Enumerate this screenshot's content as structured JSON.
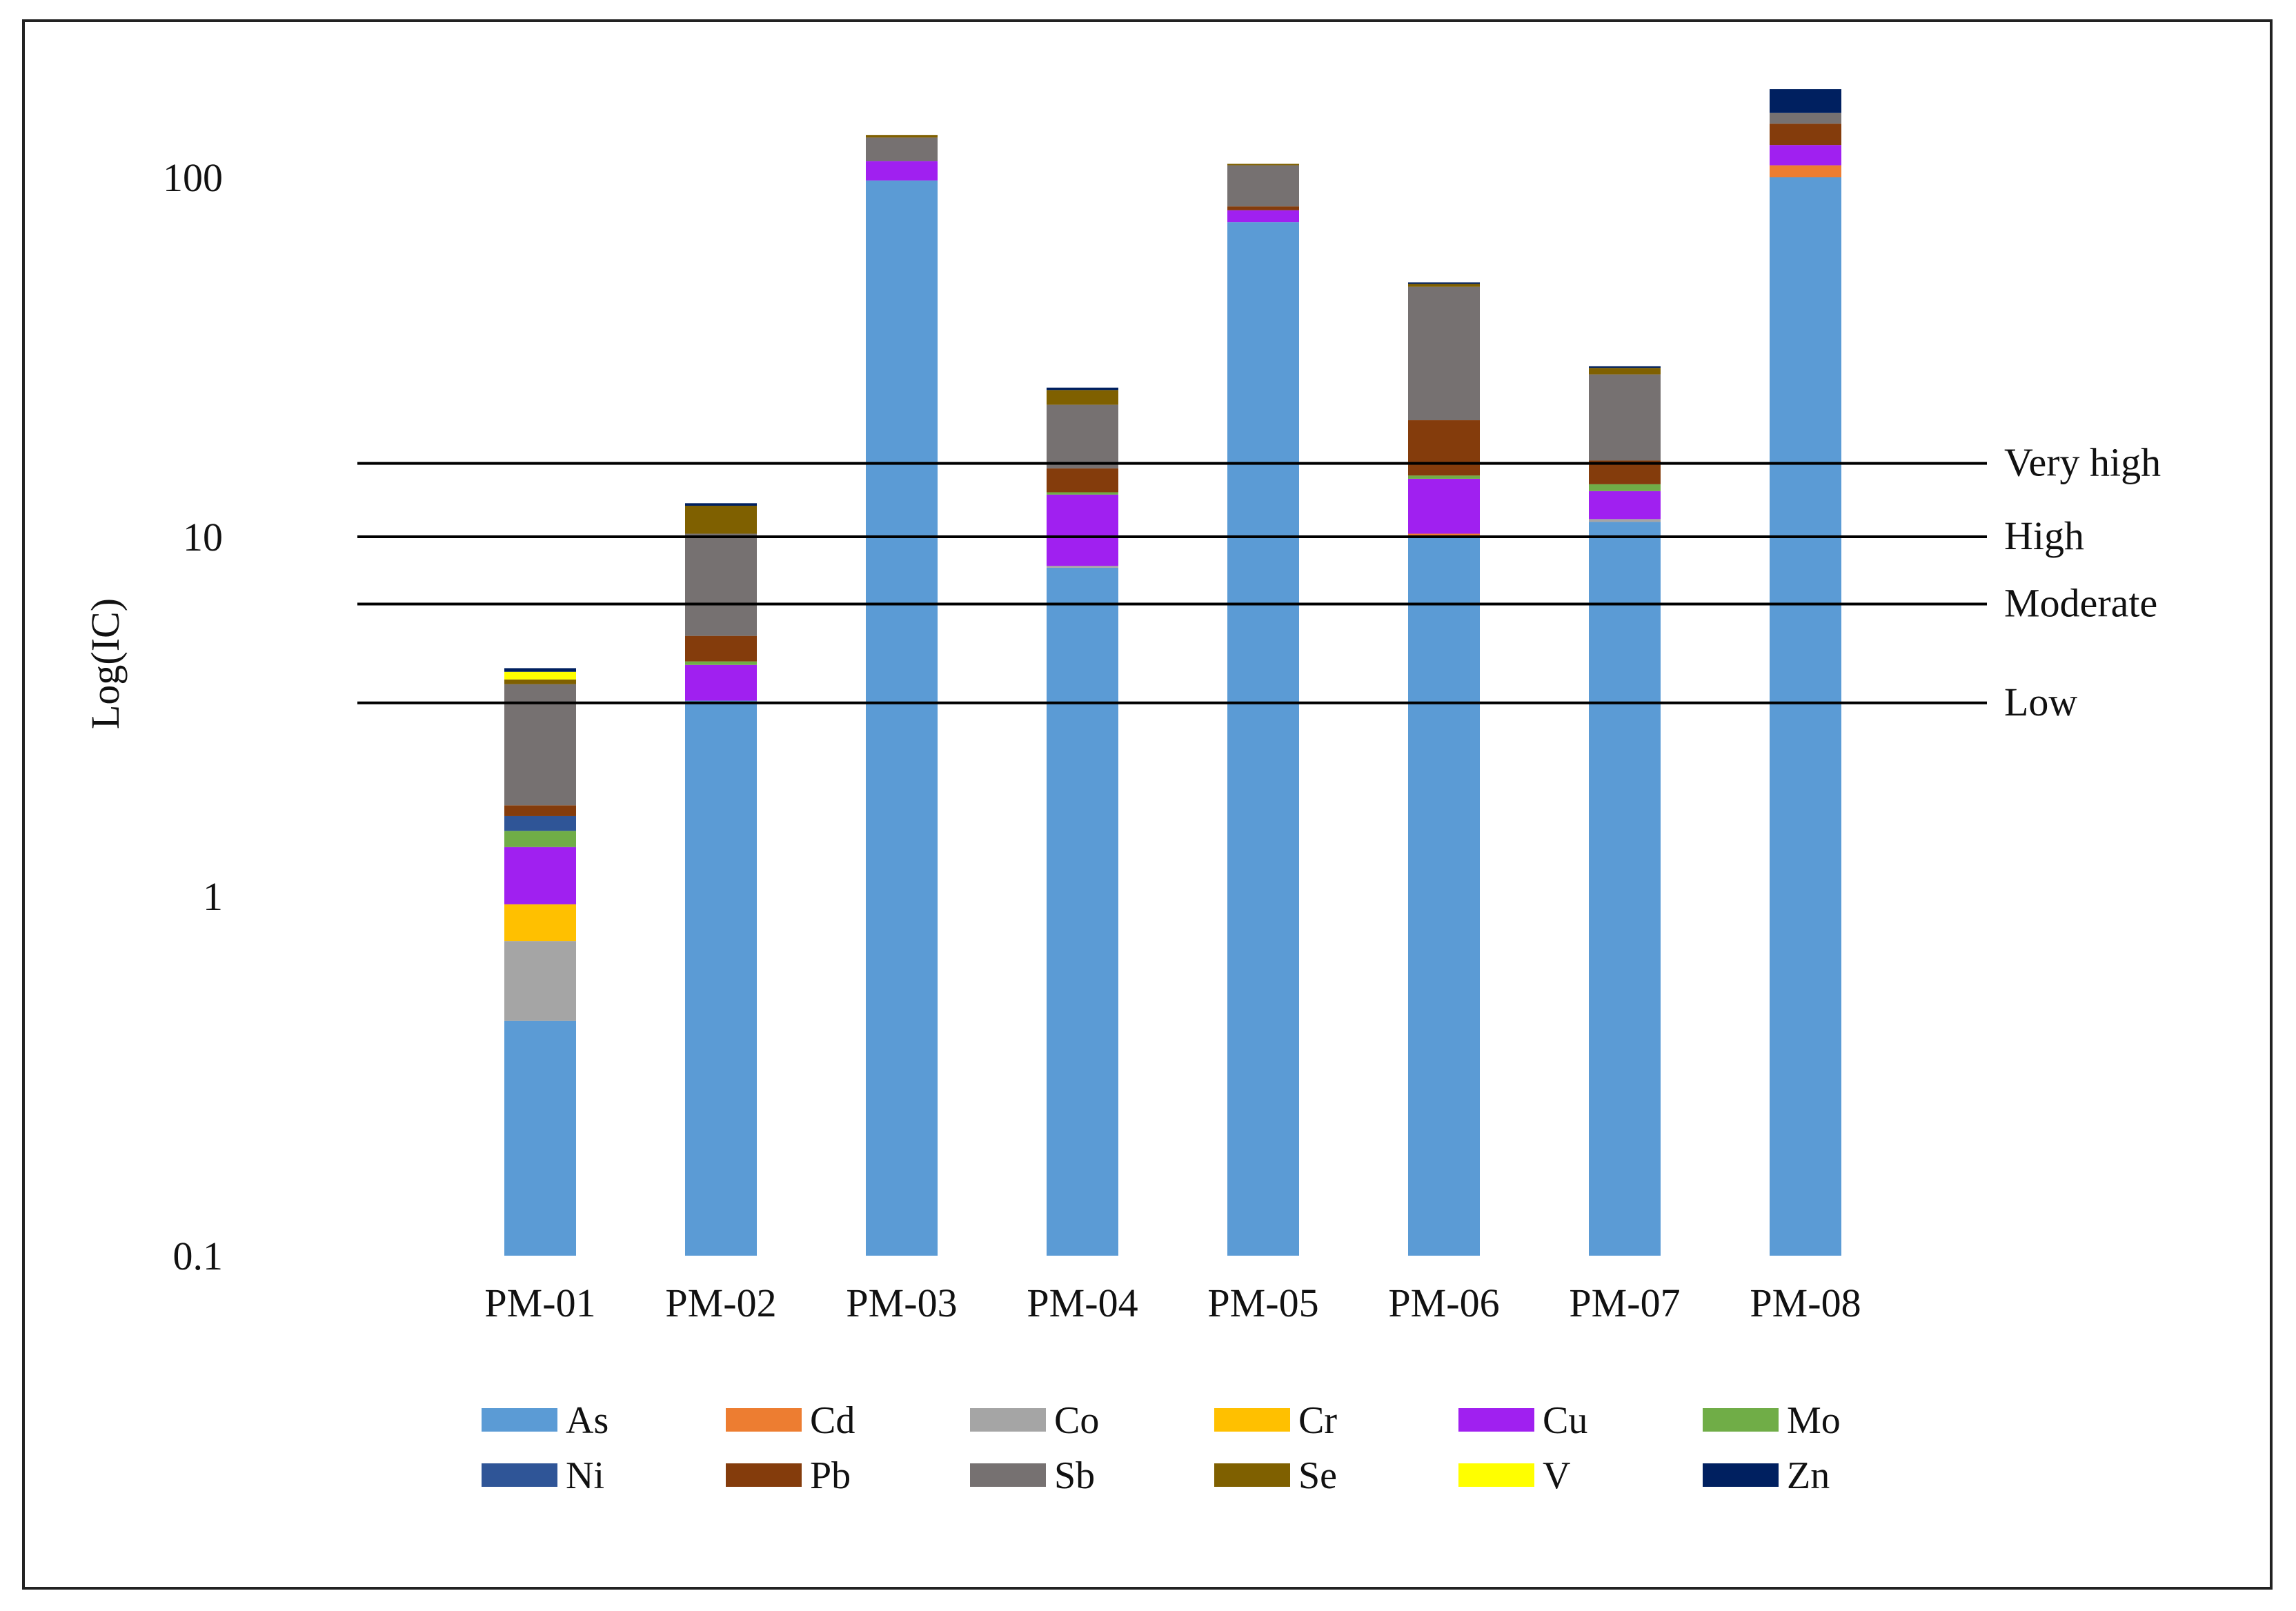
{
  "chart_data": {
    "type": "bar",
    "stacked": true,
    "yscale": "log",
    "title": "",
    "xlabel": "",
    "ylabel": "Log(IC)",
    "ylim": [
      0.1,
      220
    ],
    "yticks": [
      0.1,
      1,
      10,
      100
    ],
    "ytick_labels": [
      "0.1",
      "1",
      "10",
      "100"
    ],
    "categories": [
      "PM-01",
      "PM-02",
      "PM-03",
      "PM-04",
      "PM-05",
      "PM-06",
      "PM-07",
      "PM-08"
    ],
    "series": [
      {
        "name": "As",
        "color": "#5B9BD5",
        "values": [
          0.45,
          3.5,
          98,
          8.2,
          75,
          10.0,
          11.0,
          100
        ]
      },
      {
        "name": "Cd",
        "color": "#ED7D31",
        "values": [
          0,
          0,
          0,
          0,
          0,
          0.2,
          0,
          8
        ]
      },
      {
        "name": "Co",
        "color": "#A5A5A5",
        "values": [
          0.3,
          0,
          0,
          0.1,
          0,
          0,
          0.2,
          0
        ]
      },
      {
        "name": "Cr",
        "color": "#FFC000",
        "values": [
          0.2,
          0,
          0,
          0,
          0,
          0,
          0,
          0
        ]
      },
      {
        "name": "Cu",
        "color": "#A020F0",
        "values": [
          0.42,
          0.9,
          13,
          4.8,
          6,
          4.3,
          2.2,
          15
        ]
      },
      {
        "name": "Mo",
        "color": "#70AD47",
        "values": [
          0.15,
          0.1,
          0,
          0.2,
          0,
          0.3,
          0.6,
          0
        ]
      },
      {
        "name": "Ni",
        "color": "#2F5597",
        "values": [
          0.15,
          0,
          0,
          0,
          0,
          0,
          0,
          0
        ]
      },
      {
        "name": "Pb",
        "color": "#843C0C",
        "values": [
          0.12,
          0.8,
          0,
          2.2,
          2,
          6.3,
          2.3,
          18
        ]
      },
      {
        "name": "Sb",
        "color": "#767171",
        "values": [
          2.1,
          4.9,
          18,
          7.8,
          25,
          28.5,
          12.0,
          10
        ]
      },
      {
        "name": "Se",
        "color": "#7F6000",
        "values": [
          0.12,
          2.0,
          2,
          2.3,
          1,
          0.9,
          1.2,
          0
        ]
      },
      {
        "name": "V",
        "color": "#FFFF00",
        "values": [
          0.2,
          0,
          0,
          0,
          0,
          0,
          0,
          0
        ]
      },
      {
        "name": "Zn",
        "color": "#002060",
        "values": [
          0.1,
          0.2,
          0,
          0.4,
          0,
          0.5,
          0.3,
          25
        ]
      }
    ],
    "thresholds": [
      {
        "label": "Very high",
        "value": 16
      },
      {
        "label": "High",
        "value": 10
      },
      {
        "label": "Moderate",
        "value": 6.5
      },
      {
        "label": "Low",
        "value": 3.45
      }
    ],
    "legend_position": "bottom",
    "grid": false
  }
}
